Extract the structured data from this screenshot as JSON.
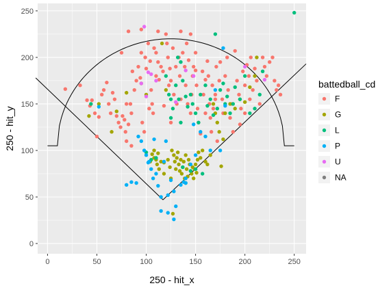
{
  "chart_data": {
    "type": "scatter",
    "xlabel": "250 - hit_x",
    "ylabel": "250 - hit_y",
    "xlim": [
      -10,
      262
    ],
    "ylim": [
      -11,
      258
    ],
    "x_ticks": [
      0,
      50,
      100,
      150,
      200,
      250
    ],
    "y_ticks": [
      0,
      50,
      100,
      150,
      200,
      250
    ],
    "grid": true,
    "panel_background": "#ebebeb",
    "grid_color": "#ffffff",
    "legend": {
      "title": "battedball_cd",
      "position": "right",
      "entries": [
        {
          "label": "F",
          "color": "#F8766D"
        },
        {
          "label": "G",
          "color": "#A3A500"
        },
        {
          "label": "L",
          "color": "#00BF7D"
        },
        {
          "label": "P",
          "color": "#00B0F6"
        },
        {
          "label": "U",
          "color": "#E76BF3"
        },
        {
          "label": "NA",
          "color": "#7F7F7F"
        }
      ]
    },
    "field_lines": {
      "foul_left": [
        [
          -12,
          178
        ],
        [
          117,
          47
        ]
      ],
      "foul_right": [
        [
          117,
          47
        ],
        [
          262,
          193
        ]
      ],
      "outfield_arc": {
        "center": [
          125,
          105
        ],
        "radius": 115,
        "from_x": 0,
        "to_x": 250
      }
    },
    "series": [
      {
        "color": "#F8766D",
        "points": [
          [
            18,
            166
          ],
          [
            33,
            170
          ],
          [
            40,
            154
          ],
          [
            45,
            154
          ],
          [
            43,
            148
          ],
          [
            48,
            140
          ],
          [
            52,
            136
          ],
          [
            55,
            160
          ],
          [
            57,
            165
          ],
          [
            60,
            173
          ],
          [
            62,
            150
          ],
          [
            64,
            140
          ],
          [
            66,
            162
          ],
          [
            68,
            155
          ],
          [
            70,
            137
          ],
          [
            72,
            130
          ],
          [
            74,
            125
          ],
          [
            76,
            137
          ],
          [
            78,
            133
          ],
          [
            79,
            120
          ],
          [
            80,
            150
          ],
          [
            80,
            110
          ],
          [
            82,
            128
          ],
          [
            84,
            150
          ],
          [
            85,
            105
          ],
          [
            86,
            185
          ],
          [
            88,
            165
          ],
          [
            90,
            175
          ],
          [
            92,
            190
          ],
          [
            94,
            178
          ],
          [
            95,
            205
          ],
          [
            96,
            130
          ],
          [
            98,
            120
          ],
          [
            99,
            200
          ],
          [
            100,
            188
          ],
          [
            102,
            215
          ],
          [
            103,
            145
          ],
          [
            104,
            196
          ],
          [
            105,
            165
          ],
          [
            106,
            150
          ],
          [
            107,
            140
          ],
          [
            108,
            210
          ],
          [
            110,
            205
          ],
          [
            110,
            180
          ],
          [
            112,
            195
          ],
          [
            113,
            176
          ],
          [
            115,
            190
          ],
          [
            117,
            185
          ],
          [
            118,
            148
          ],
          [
            120,
            225
          ],
          [
            121,
            215
          ],
          [
            122,
            200
          ],
          [
            123,
            170
          ],
          [
            124,
            188
          ],
          [
            125,
            175
          ],
          [
            127,
            210
          ],
          [
            128,
            160
          ],
          [
            130,
            190
          ],
          [
            131,
            150
          ],
          [
            133,
            200
          ],
          [
            134,
            180
          ],
          [
            135,
            155
          ],
          [
            137,
            205
          ],
          [
            139,
            190
          ],
          [
            140,
            170
          ],
          [
            141,
            215
          ],
          [
            142,
            150
          ],
          [
            143,
            197
          ],
          [
            145,
            225
          ],
          [
            146,
            160
          ],
          [
            147,
            180
          ],
          [
            148,
            190
          ],
          [
            150,
            205
          ],
          [
            151,
            170
          ],
          [
            152,
            145
          ],
          [
            153,
            130
          ],
          [
            155,
            118
          ],
          [
            157,
            185
          ],
          [
            158,
            160
          ],
          [
            160,
            140
          ],
          [
            162,
            196
          ],
          [
            163,
            180
          ],
          [
            164,
            150
          ],
          [
            165,
            135
          ],
          [
            166,
            120
          ],
          [
            167,
            170
          ],
          [
            168,
            145
          ],
          [
            170,
            160
          ],
          [
            171,
            190
          ],
          [
            172,
            110
          ],
          [
            174,
            175
          ],
          [
            175,
            195
          ],
          [
            177,
            155
          ],
          [
            178,
            140
          ],
          [
            180,
            180
          ],
          [
            182,
            200
          ],
          [
            183,
            165
          ],
          [
            185,
            135
          ],
          [
            187,
            150
          ],
          [
            190,
            207
          ],
          [
            192,
            175
          ],
          [
            194,
            160
          ],
          [
            196,
            145
          ],
          [
            198,
            185
          ],
          [
            200,
            170
          ],
          [
            202,
            192
          ],
          [
            204,
            180
          ],
          [
            206,
            200
          ],
          [
            208,
            165
          ],
          [
            210,
            188
          ],
          [
            212,
            175
          ],
          [
            215,
            150
          ],
          [
            218,
            200
          ],
          [
            220,
            190
          ],
          [
            222,
            180
          ],
          [
            225,
            195
          ],
          [
            228,
            200
          ],
          [
            230,
            175
          ],
          [
            232,
            165
          ],
          [
            234,
            170
          ],
          [
            236,
            160
          ],
          [
            200,
            140
          ],
          [
            195,
            128
          ],
          [
            188,
            120
          ],
          [
            75,
            205
          ],
          [
            82,
            228
          ],
          [
            112,
            228
          ],
          [
            135,
            228
          ],
          [
            150,
            186
          ],
          [
            160,
            176
          ],
          [
            85,
            140
          ],
          [
            170,
            155
          ],
          [
            125,
            130
          ],
          [
            145,
            140
          ],
          [
            205,
            155
          ],
          [
            50,
            115
          ],
          [
            95,
            230
          ]
        ]
      },
      {
        "color": "#A3A500",
        "points": [
          [
            42,
            137
          ],
          [
            52,
            150
          ],
          [
            65,
            120
          ],
          [
            70,
            142
          ],
          [
            80,
            162
          ],
          [
            95,
            172
          ],
          [
            100,
            160
          ],
          [
            104,
            88
          ],
          [
            106,
            96
          ],
          [
            108,
            92
          ],
          [
            110,
            90
          ],
          [
            111,
            85
          ],
          [
            112,
            97
          ],
          [
            113,
            80
          ],
          [
            115,
            88
          ],
          [
            116,
            215
          ],
          [
            118,
            75
          ],
          [
            120,
            165
          ],
          [
            122,
            90
          ],
          [
            124,
            82
          ],
          [
            125,
            70
          ],
          [
            126,
            100
          ],
          [
            127,
            32
          ],
          [
            128,
            95
          ],
          [
            129,
            88
          ],
          [
            130,
            80
          ],
          [
            131,
            92
          ],
          [
            132,
            98
          ],
          [
            133,
            85
          ],
          [
            134,
            78
          ],
          [
            135,
            90
          ],
          [
            136,
            75
          ],
          [
            137,
            82
          ],
          [
            138,
            88
          ],
          [
            139,
            70
          ],
          [
            140,
            95
          ],
          [
            141,
            80
          ],
          [
            142,
            72
          ],
          [
            143,
            90
          ],
          [
            144,
            85
          ],
          [
            145,
            78
          ],
          [
            146,
            75
          ],
          [
            147,
            82
          ],
          [
            148,
            70
          ],
          [
            149,
            80
          ],
          [
            150,
            85
          ],
          [
            151,
            76
          ],
          [
            152,
            90
          ],
          [
            153,
            98
          ],
          [
            155,
            92
          ],
          [
            157,
            100
          ],
          [
            160,
            88
          ],
          [
            162,
            85
          ],
          [
            165,
            95
          ],
          [
            168,
            150
          ],
          [
            170,
            140
          ],
          [
            172,
            130
          ],
          [
            174,
            120
          ],
          [
            176,
            83
          ],
          [
            178,
            112
          ],
          [
            180,
            140
          ],
          [
            185,
            150
          ],
          [
            190,
            145
          ],
          [
            195,
            155
          ],
          [
            200,
            152
          ],
          [
            205,
            168
          ],
          [
            210,
            180
          ],
          [
            212,
            200
          ],
          [
            108,
            100
          ],
          [
            118,
            87
          ]
        ]
      },
      {
        "color": "#00BF7D",
        "points": [
          [
            44,
            150
          ],
          [
            100,
            98
          ],
          [
            105,
            90
          ],
          [
            110,
            92
          ],
          [
            120,
            180
          ],
          [
            123,
            160
          ],
          [
            125,
            155
          ],
          [
            127,
            145
          ],
          [
            130,
            170
          ],
          [
            133,
            155
          ],
          [
            135,
            195
          ],
          [
            137,
            175
          ],
          [
            140,
            158
          ],
          [
            142,
            147
          ],
          [
            145,
            160
          ],
          [
            147,
            150
          ],
          [
            150,
            140
          ],
          [
            153,
            130
          ],
          [
            155,
            160
          ],
          [
            157,
            75
          ],
          [
            160,
            170
          ],
          [
            162,
            148
          ],
          [
            165,
            155
          ],
          [
            168,
            138
          ],
          [
            170,
            225
          ],
          [
            172,
            145
          ],
          [
            175,
            165
          ],
          [
            178,
            172
          ],
          [
            180,
            150
          ],
          [
            182,
            158
          ],
          [
            185,
            140
          ],
          [
            188,
            150
          ],
          [
            190,
            168
          ],
          [
            195,
            155
          ],
          [
            200,
            180
          ],
          [
            205,
            140
          ],
          [
            210,
            145
          ],
          [
            215,
            160
          ],
          [
            218,
            185
          ],
          [
            250,
            248
          ],
          [
            140,
            65
          ],
          [
            137,
            82
          ],
          [
            145,
            78
          ],
          [
            132,
            200
          ],
          [
            125,
            135
          ],
          [
            135,
            130
          ],
          [
            150,
            80
          ]
        ]
      },
      {
        "color": "#00B0F6",
        "points": [
          [
            52,
            147
          ],
          [
            80,
            63
          ],
          [
            85,
            66
          ],
          [
            90,
            65
          ],
          [
            92,
            115
          ],
          [
            95,
            110
          ],
          [
            98,
            100
          ],
          [
            100,
            95
          ],
          [
            102,
            87
          ],
          [
            105,
            80
          ],
          [
            107,
            70
          ],
          [
            108,
            112
          ],
          [
            110,
            75
          ],
          [
            112,
            62
          ],
          [
            115,
            50
          ],
          [
            118,
            88
          ],
          [
            120,
            110
          ],
          [
            122,
            52
          ],
          [
            125,
            68
          ],
          [
            128,
            56
          ],
          [
            130,
            40
          ],
          [
            135,
            63
          ],
          [
            138,
            66
          ],
          [
            140,
            70
          ],
          [
            145,
            85
          ],
          [
            148,
            128
          ],
          [
            150,
            95
          ],
          [
            155,
            120
          ],
          [
            160,
            115
          ],
          [
            165,
            100
          ],
          [
            170,
            165
          ],
          [
            175,
            100
          ],
          [
            178,
            210
          ],
          [
            180,
            148
          ],
          [
            103,
            88
          ],
          [
            140,
            65
          ],
          [
            115,
            35
          ],
          [
            122,
            33
          ],
          [
            128,
            26
          ]
        ]
      },
      {
        "color": "#E76BF3",
        "points": [
          [
            95,
            172
          ],
          [
            98,
            233
          ],
          [
            100,
            158
          ],
          [
            102,
            184
          ],
          [
            105,
            182
          ],
          [
            110,
            175
          ],
          [
            130,
            152
          ],
          [
            140,
            186
          ],
          [
            148,
            180
          ],
          [
            200,
            190
          ],
          [
            220,
            176
          ]
        ]
      }
    ]
  }
}
